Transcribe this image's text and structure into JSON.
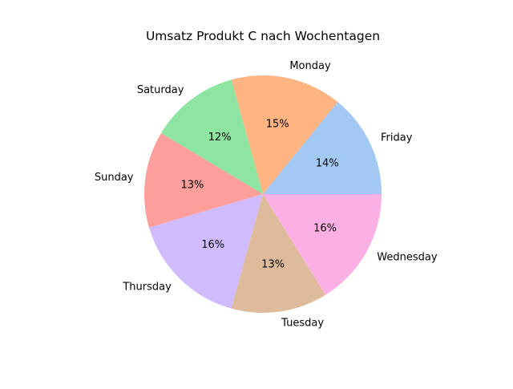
{
  "chart_data": {
    "type": "pie",
    "title": "Umsatz Produkt C nach Wochentagen",
    "categories": [
      "Friday",
      "Monday",
      "Saturday",
      "Sunday",
      "Thursday",
      "Tuesday",
      "Wednesday"
    ],
    "values": [
      14,
      15,
      12,
      13,
      16,
      13,
      16
    ],
    "percent_labels": [
      "14%",
      "15%",
      "12%",
      "13%",
      "16%",
      "13%",
      "16%"
    ],
    "colors": [
      "#a1c9f4",
      "#ffb482",
      "#8de5a1",
      "#ff9f9b",
      "#d0bbff",
      "#debb9b",
      "#fab0e4"
    ],
    "start_angle_deg": 0,
    "direction": "counterclockwise",
    "legend": "none"
  }
}
